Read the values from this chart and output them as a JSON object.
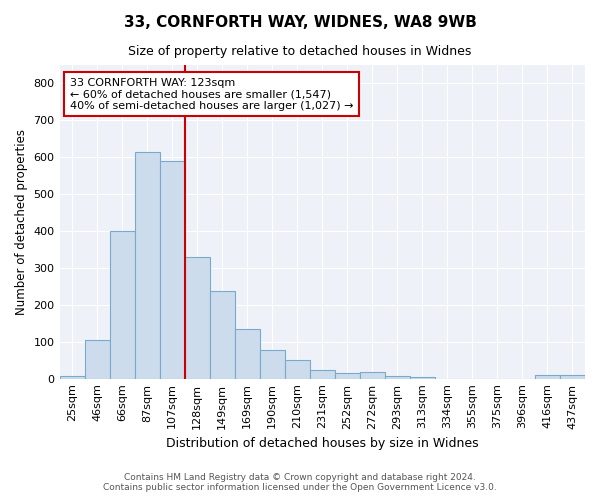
{
  "title1": "33, CORNFORTH WAY, WIDNES, WA8 9WB",
  "title2": "Size of property relative to detached houses in Widnes",
  "xlabel": "Distribution of detached houses by size in Widnes",
  "ylabel": "Number of detached properties",
  "bins": [
    "25sqm",
    "46sqm",
    "66sqm",
    "87sqm",
    "107sqm",
    "128sqm",
    "149sqm",
    "169sqm",
    "190sqm",
    "210sqm",
    "231sqm",
    "252sqm",
    "272sqm",
    "293sqm",
    "313sqm",
    "334sqm",
    "355sqm",
    "375sqm",
    "396sqm",
    "416sqm",
    "437sqm"
  ],
  "values": [
    7,
    106,
    401,
    614,
    591,
    330,
    237,
    135,
    78,
    51,
    24,
    15,
    18,
    8,
    4,
    0,
    0,
    0,
    0,
    9,
    10
  ],
  "bar_color": "#ccdcec",
  "bar_edge_color": "#7aaacb",
  "vline_color": "#cc0000",
  "annotation_text": "33 CORNFORTH WAY: 123sqm\n← 60% of detached houses are smaller (1,547)\n40% of semi-detached houses are larger (1,027) →",
  "annotation_box_color": "#ffffff",
  "annotation_box_edge": "#cc0000",
  "ylim": [
    0,
    850
  ],
  "yticks": [
    0,
    100,
    200,
    300,
    400,
    500,
    600,
    700,
    800
  ],
  "footer1": "Contains HM Land Registry data © Crown copyright and database right 2024.",
  "footer2": "Contains public sector information licensed under the Open Government Licence v3.0.",
  "bg_color": "#eef2f8"
}
